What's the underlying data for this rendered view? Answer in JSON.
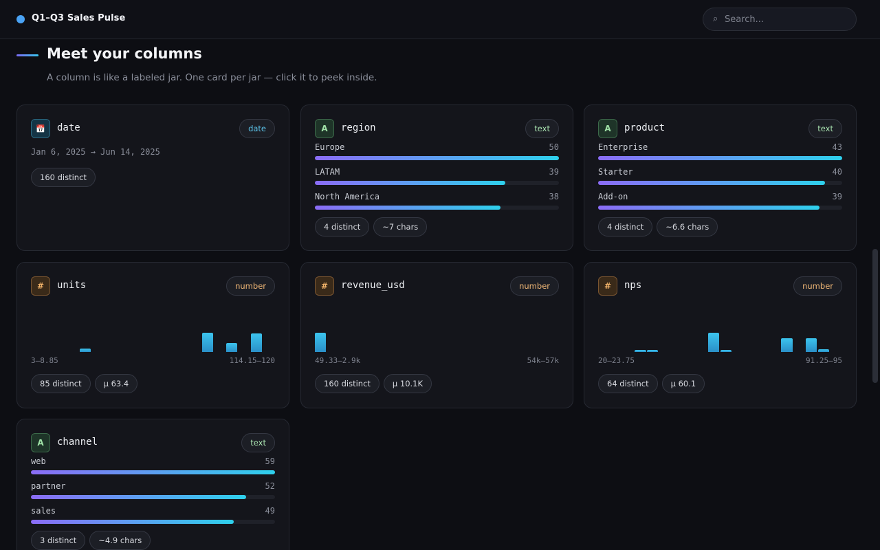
{
  "header": {
    "title": "Q1–Q3 Sales Pulse",
    "search_placeholder": "Search..."
  },
  "section": {
    "title": "Meet your columns",
    "subtitle": "A column is like a labeled jar. One card per jar — click it to peek inside."
  },
  "cards": {
    "date": {
      "name": "date",
      "type": "date",
      "icon": "calendar-icon",
      "range": "Jan 6, 2025 → Jun 14, 2025",
      "chips": [
        "160 distinct"
      ]
    },
    "region": {
      "name": "region",
      "type": "text",
      "icon": "A",
      "max": 50,
      "bars": [
        {
          "label": "Europe",
          "count": 50
        },
        {
          "label": "LATAM",
          "count": 39
        },
        {
          "label": "North America",
          "count": 38
        }
      ],
      "chips": [
        "4 distinct",
        "~7 chars"
      ]
    },
    "product": {
      "name": "product",
      "type": "text",
      "icon": "A",
      "max": 43,
      "bars": [
        {
          "label": "Enterprise",
          "count": 43
        },
        {
          "label": "Starter",
          "count": 40
        },
        {
          "label": "Add-on",
          "count": 39
        }
      ],
      "chips": [
        "4 distinct",
        "~6.6 chars"
      ]
    },
    "units": {
      "name": "units",
      "type": "number",
      "icon": "#",
      "min_label": "3–8.85",
      "max_label": "114.15–120",
      "histogram": [
        0,
        0,
        0,
        0,
        0.18,
        0,
        0,
        0,
        0,
        0,
        0,
        0,
        0,
        0,
        1,
        0,
        0.45,
        0,
        0.95,
        0
      ],
      "chips": [
        "85 distinct",
        "µ 63.4"
      ]
    },
    "revenue_usd": {
      "name": "revenue_usd",
      "type": "number",
      "icon": "#",
      "min_label": "49.33–2.9k",
      "max_label": "54k–57k",
      "histogram": [
        1,
        0,
        0,
        0,
        0,
        0,
        0,
        0,
        0,
        0,
        0,
        0,
        0,
        0,
        0,
        0,
        0,
        0,
        0,
        0
      ],
      "chips": [
        "160 distinct",
        "µ 10.1K"
      ]
    },
    "nps": {
      "name": "nps",
      "type": "number",
      "icon": "#",
      "min_label": "20–23.75",
      "max_label": "91.25–95",
      "histogram": [
        0,
        0,
        0,
        0.1,
        0.1,
        0,
        0,
        0,
        0,
        1,
        0.12,
        0,
        0,
        0,
        0,
        0.7,
        0,
        0.7,
        0.14,
        0
      ],
      "chips": [
        "64 distinct",
        "µ 60.1"
      ]
    },
    "channel": {
      "name": "channel",
      "type": "text",
      "icon": "A",
      "max": 59,
      "bars": [
        {
          "label": "web",
          "count": 59
        },
        {
          "label": "partner",
          "count": 52
        },
        {
          "label": "sales",
          "count": 49
        }
      ],
      "chips": [
        "3 distinct",
        "~4.9 chars"
      ]
    }
  }
}
